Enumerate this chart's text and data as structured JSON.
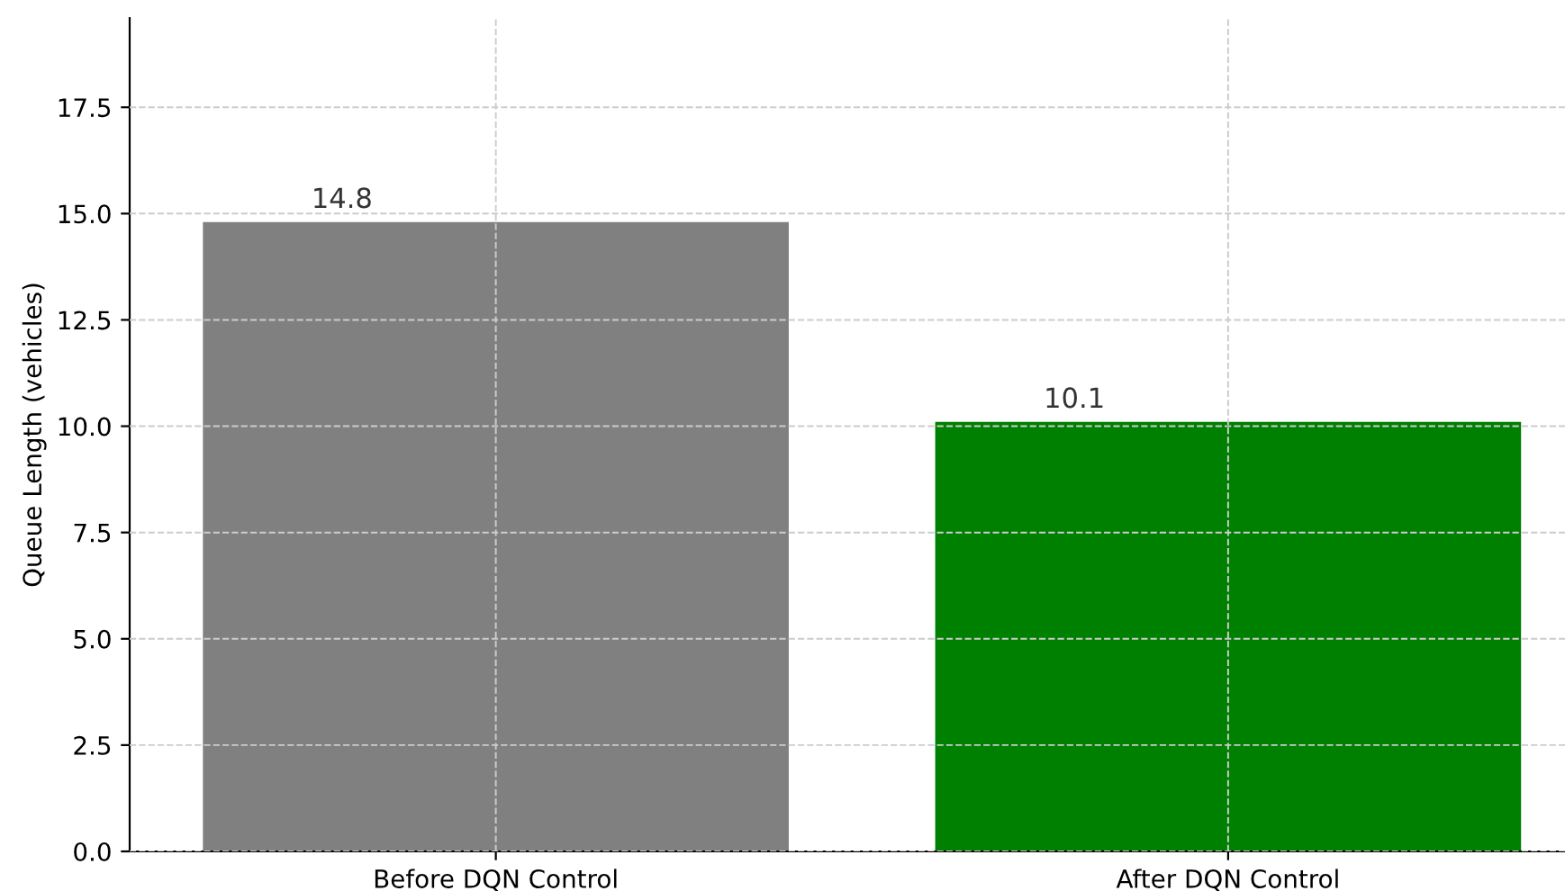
{
  "chart_data": {
    "type": "bar",
    "ylabel": "Queue Length (vehicles)",
    "categories": [
      "Before DQN Control",
      "After DQN Control"
    ],
    "values": [
      14.8,
      10.1
    ],
    "colors": [
      "#808080",
      "#008000"
    ],
    "data_labels": true,
    "ylim": [
      0,
      19.6
    ],
    "yticks": [
      {
        "value": 0,
        "label": "0.0"
      },
      2.5,
      {
        "value": 5,
        "label": "5.0"
      },
      7.5,
      {
        "value": 10,
        "label": "10.0"
      },
      12.5,
      {
        "value": 15,
        "label": "15.0"
      },
      17.5
    ],
    "grid": true
  }
}
